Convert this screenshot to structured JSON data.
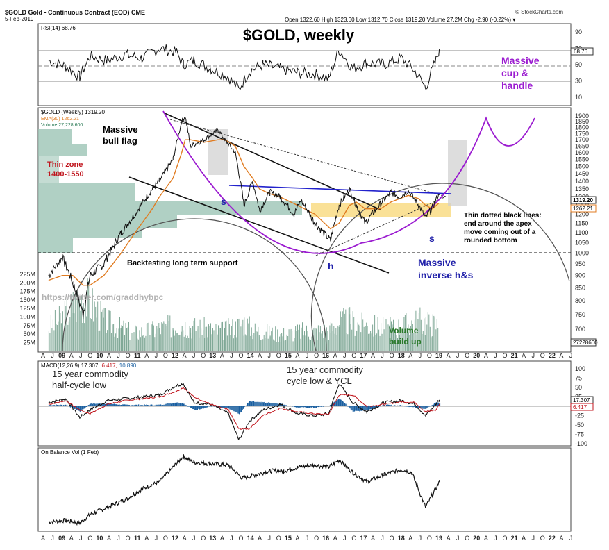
{
  "chart_data": {
    "type": "line",
    "symbol": "$GOLD",
    "header": {
      "symbol_line": "$GOLD Gold - Continuous Contract (EOD) CME",
      "date": "5-Feb-2019",
      "ohlc": "Open 1322.60  High 1323.60  Low 1312.70  Close 1319.20  Volume 27.2M  Chg -2.90 (-0.22%) ▾",
      "source": "© StockCharts.com"
    },
    "title": "$GOLD, weekly",
    "rsi": {
      "label": "RSI(14) 68.76",
      "value": 68.76,
      "ticks": [
        90,
        70,
        50,
        30,
        10
      ],
      "value_label": "68.76",
      "x": [
        2007.8,
        2008.3,
        2008.7,
        2009.0,
        2009.5,
        2010.0,
        2010.5,
        2011.0,
        2011.5,
        2011.7,
        2012.0,
        2012.5,
        2013.0,
        2013.3,
        2013.6,
        2014.0,
        2014.5,
        2015.0,
        2015.5,
        2015.9,
        2016.2,
        2016.6,
        2017.0,
        2017.5,
        2018.0,
        2018.4,
        2018.7,
        2019.0,
        2019.1
      ],
      "y": [
        55,
        48,
        35,
        60,
        55,
        62,
        58,
        70,
        65,
        50,
        55,
        45,
        35,
        20,
        42,
        50,
        45,
        40,
        38,
        33,
        68,
        45,
        52,
        50,
        58,
        42,
        22,
        55,
        69
      ]
    },
    "price_panel": {
      "label": "$GOLD (Weekly) 1319.20",
      "ema_label": "EMA(30) 1262.21",
      "volume_label": "Volume 27,228,600",
      "close_label": "1319.20",
      "ema_value_label": "1262.21",
      "price_ticks": [
        1900,
        1850,
        1800,
        1750,
        1700,
        1650,
        1600,
        1550,
        1500,
        1450,
        1400,
        1350,
        1300,
        1250,
        1200,
        1150,
        1100,
        1050,
        1000,
        950,
        900,
        850,
        800,
        750,
        700
      ],
      "volume_ticks": [
        "225M",
        "200M",
        "175M",
        "150M",
        "125M",
        "100M",
        "75M",
        "50M",
        "25M"
      ],
      "volume_value_label": "27228600",
      "x": [
        2007.8,
        2008.2,
        2008.5,
        2008.8,
        2009.0,
        2009.4,
        2009.9,
        2010.3,
        2010.8,
        2011.0,
        2011.4,
        2011.65,
        2011.75,
        2011.9,
        2012.3,
        2012.7,
        2012.9,
        2013.2,
        2013.45,
        2013.7,
        2013.9,
        2014.2,
        2014.5,
        2014.9,
        2015.1,
        2015.5,
        2015.95,
        2016.2,
        2016.5,
        2016.7,
        2016.95,
        2017.4,
        2017.7,
        2017.95,
        2018.2,
        2018.5,
        2018.7,
        2018.9,
        2019.08
      ],
      "close": [
        900,
        980,
        870,
        750,
        900,
        950,
        1100,
        1200,
        1350,
        1400,
        1550,
        1850,
        1900,
        1650,
        1700,
        1780,
        1700,
        1600,
        1250,
        1400,
        1220,
        1330,
        1300,
        1200,
        1280,
        1150,
        1060,
        1250,
        1350,
        1250,
        1150,
        1260,
        1330,
        1300,
        1340,
        1250,
        1180,
        1240,
        1319
      ],
      "ema": [
        880,
        900,
        900,
        860,
        860,
        900,
        1000,
        1100,
        1230,
        1300,
        1420,
        1600,
        1700,
        1700,
        1680,
        1700,
        1700,
        1650,
        1500,
        1420,
        1350,
        1320,
        1300,
        1260,
        1240,
        1200,
        1120,
        1150,
        1250,
        1270,
        1230,
        1230,
        1270,
        1290,
        1310,
        1290,
        1250,
        1230,
        1262
      ],
      "volume_millions": [
        80,
        110,
        150,
        180,
        160,
        100,
        75,
        60,
        70,
        75,
        85,
        90,
        85,
        80,
        75,
        65,
        70,
        80,
        95,
        70,
        65,
        60,
        55,
        60,
        65,
        65,
        70,
        95,
        100,
        90,
        85,
        80,
        75,
        80,
        90,
        100,
        95,
        90,
        85
      ]
    },
    "annotations": {
      "bull_flag": "Massive\nbull flag",
      "thin_zone": "Thin zone\n1400-1550",
      "cup": "Massive\ncup &\nhandle",
      "s_left": "s",
      "s_right": "s",
      "h": "h",
      "support": "Backtesting long term support",
      "dotted": "Thin dotted black lines:\nend around the apex\nmove coming out of a\nrounded bottom",
      "inverse_hs": "Massive\ninverse h&s",
      "url": "https://twitter.com/graddhybpc",
      "volume": "Volume\nbuild up"
    },
    "x_axis": {
      "labels": [
        "A",
        "J",
        "09",
        "A",
        "J",
        "O",
        "10",
        "A",
        "J",
        "O",
        "11",
        "A",
        "J",
        "O",
        "12",
        "A",
        "J",
        "O",
        "13",
        "A",
        "J",
        "O",
        "14",
        "A",
        "J",
        "O",
        "15",
        "A",
        "J",
        "O",
        "16",
        "A",
        "J",
        "O",
        "17",
        "A",
        "J",
        "O",
        "18",
        "A",
        "J",
        "O",
        "19",
        "A",
        "J",
        "O",
        "20",
        "A",
        "J",
        "O",
        "21",
        "A",
        "J",
        "O",
        "22",
        "A",
        "J"
      ]
    },
    "macd": {
      "label": "MACD(12,26,9) 17.307, 6.417, 10.890",
      "label_main": "MACD(12,26,9) 17.307,",
      "label_sig": "6.417,",
      "label_hist": "10.890",
      "ticks": [
        "100",
        "75",
        "50",
        "25",
        "0",
        "-25",
        "-50",
        "-75",
        "-100"
      ],
      "value_label": "17.307",
      "sig_label": "6.417",
      "note_left": "15 year commodity\nhalf-cycle low",
      "note_right": "15 year commodity\ncycle low & YCL",
      "x": [
        2007.8,
        2008.3,
        2008.7,
        2009.0,
        2009.5,
        2010.0,
        2010.5,
        2011.0,
        2011.5,
        2011.7,
        2012.0,
        2012.5,
        2013.0,
        2013.3,
        2013.6,
        2014.0,
        2014.5,
        2015.0,
        2015.5,
        2015.9,
        2016.2,
        2016.6,
        2017.0,
        2017.5,
        2018.0,
        2018.4,
        2018.7,
        2019.0,
        2019.1
      ],
      "macd": [
        10,
        20,
        -30,
        -10,
        15,
        20,
        25,
        30,
        55,
        60,
        10,
        5,
        -20,
        -90,
        -40,
        -10,
        5,
        -20,
        -25,
        -20,
        60,
        10,
        -15,
        10,
        15,
        5,
        -25,
        5,
        17
      ],
      "signal": [
        5,
        15,
        -10,
        -20,
        5,
        15,
        20,
        25,
        40,
        50,
        25,
        5,
        -10,
        -60,
        -60,
        -25,
        -5,
        -15,
        -20,
        -22,
        30,
        30,
        0,
        5,
        12,
        10,
        -15,
        -10,
        6
      ]
    },
    "obv": {
      "label": "On Balance Vol (1 Feb)",
      "x": [
        2007.8,
        2008.3,
        2008.7,
        2009.0,
        2009.5,
        2010.0,
        2010.5,
        2011.0,
        2011.5,
        2011.7,
        2012.0,
        2012.5,
        2013.0,
        2013.4,
        2013.8,
        2014.2,
        2014.6,
        2015.0,
        2015.5,
        2015.9,
        2016.2,
        2016.6,
        2017.0,
        2017.5,
        2018.0,
        2018.3,
        2018.7,
        2019.1
      ],
      "y": [
        10,
        12,
        8,
        20,
        30,
        40,
        55,
        65,
        90,
        100,
        92,
        90,
        88,
        70,
        75,
        80,
        80,
        85,
        88,
        85,
        95,
        78,
        65,
        75,
        82,
        78,
        30,
        65
      ]
    }
  }
}
